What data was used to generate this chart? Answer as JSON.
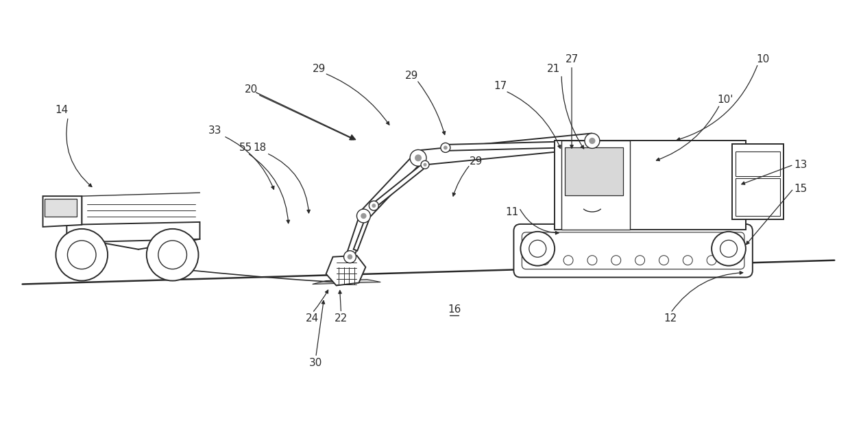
{
  "background_color": "#ffffff",
  "line_color": "#2a2a2a",
  "figure_width": 12.4,
  "figure_height": 6.2,
  "dpi": 100
}
